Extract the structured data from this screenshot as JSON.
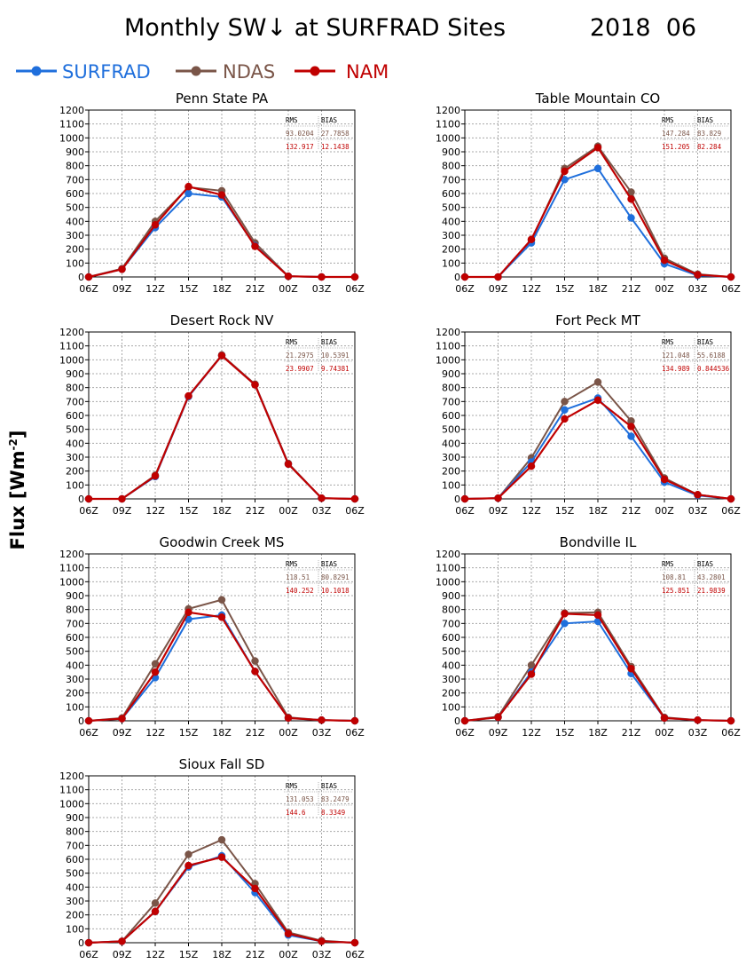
{
  "title": "Monthly SW↓ at SURFRAD Sites",
  "date": "2018  06",
  "ylabel_base": "Flux [Wm",
  "ylabel_sup": "-2",
  "ylabel_end": "]",
  "legend": [
    {
      "name": "SURFRAD",
      "color": "#1f6fdc"
    },
    {
      "name": "NDAS",
      "color": "#7a5548"
    },
    {
      "name": "NAM",
      "color": "#c00000"
    }
  ],
  "colors": {
    "SURFRAD": "#1f6fdc",
    "NDAS": "#7a5548",
    "NAM": "#c00000",
    "grid": "#a8a8a8"
  },
  "stats_headers": [
    "RMS",
    "BIAS"
  ],
  "chart_data": [
    {
      "type": "line",
      "title": "Penn State PA",
      "categories": [
        "06Z",
        "09Z",
        "12Z",
        "15Z",
        "18Z",
        "21Z",
        "00Z",
        "03Z",
        "06Z"
      ],
      "ylim": [
        0,
        1200
      ],
      "yticks": [
        "0",
        "100",
        "200",
        "300",
        "400",
        "500",
        "600",
        "700",
        "800",
        "900",
        "1000",
        "1100",
        "1200"
      ],
      "grid": true,
      "series": [
        {
          "name": "SURFRAD",
          "values": [
            0,
            55,
            355,
            600,
            575,
            225,
            5,
            0,
            0
          ]
        },
        {
          "name": "NDAS",
          "values": [
            0,
            60,
            400,
            645,
            620,
            245,
            5,
            0,
            0
          ]
        },
        {
          "name": "NAM",
          "values": [
            0,
            55,
            375,
            650,
            590,
            220,
            5,
            0,
            0
          ]
        }
      ],
      "stats": {
        "ndas": [
          "93.0204",
          "27.7858"
        ],
        "nam": [
          "132.917",
          "12.1438"
        ]
      }
    },
    {
      "type": "line",
      "title": "Table Mountain CO",
      "categories": [
        "06Z",
        "09Z",
        "12Z",
        "15Z",
        "18Z",
        "21Z",
        "00Z",
        "03Z",
        "06Z"
      ],
      "ylim": [
        0,
        1200
      ],
      "yticks": [
        "0",
        "100",
        "200",
        "300",
        "400",
        "500",
        "600",
        "700",
        "800",
        "900",
        "1000",
        "1100",
        "1200"
      ],
      "grid": true,
      "series": [
        {
          "name": "SURFRAD",
          "values": [
            0,
            0,
            245,
            700,
            780,
            425,
            95,
            10,
            0
          ]
        },
        {
          "name": "NDAS",
          "values": [
            0,
            0,
            265,
            780,
            940,
            610,
            135,
            20,
            0
          ]
        },
        {
          "name": "NAM",
          "values": [
            0,
            0,
            270,
            760,
            930,
            560,
            120,
            15,
            0
          ]
        }
      ],
      "stats": {
        "ndas": [
          "147.284",
          "83.829"
        ],
        "nam": [
          "151.205",
          "82.284"
        ]
      }
    },
    {
      "type": "line",
      "title": "Desert Rock NV",
      "categories": [
        "06Z",
        "09Z",
        "12Z",
        "15Z",
        "18Z",
        "21Z",
        "00Z",
        "03Z",
        "06Z"
      ],
      "ylim": [
        0,
        1200
      ],
      "yticks": [
        "0",
        "100",
        "200",
        "300",
        "400",
        "500",
        "600",
        "700",
        "800",
        "900",
        "1000",
        "1100",
        "1200"
      ],
      "grid": true,
      "series": [
        {
          "name": "SURFRAD",
          "values": [
            0,
            0,
            160,
            735,
            1030,
            820,
            250,
            5,
            0
          ]
        },
        {
          "name": "NDAS",
          "values": [
            0,
            0,
            170,
            740,
            1035,
            825,
            255,
            5,
            0
          ]
        },
        {
          "name": "NAM",
          "values": [
            0,
            0,
            165,
            740,
            1030,
            820,
            250,
            5,
            0
          ]
        }
      ],
      "stats": {
        "ndas": [
          "21.2975",
          "10.5391"
        ],
        "nam": [
          "23.9907",
          "9.74381"
        ]
      }
    },
    {
      "type": "line",
      "title": "Fort Peck MT",
      "categories": [
        "06Z",
        "09Z",
        "12Z",
        "15Z",
        "18Z",
        "21Z",
        "00Z",
        "03Z",
        "06Z"
      ],
      "ylim": [
        0,
        1200
      ],
      "yticks": [
        "0",
        "100",
        "200",
        "300",
        "400",
        "500",
        "600",
        "700",
        "800",
        "900",
        "1000",
        "1100",
        "1200"
      ],
      "grid": true,
      "series": [
        {
          "name": "SURFRAD",
          "values": [
            0,
            5,
            265,
            640,
            725,
            450,
            120,
            25,
            0
          ]
        },
        {
          "name": "NDAS",
          "values": [
            0,
            5,
            295,
            700,
            840,
            560,
            150,
            30,
            0
          ]
        },
        {
          "name": "NAM",
          "values": [
            0,
            5,
            235,
            575,
            710,
            520,
            140,
            30,
            0
          ]
        }
      ],
      "stats": {
        "ndas": [
          "121.048",
          "55.6188"
        ],
        "nam": [
          "134.989",
          "0.844536"
        ]
      }
    },
    {
      "type": "line",
      "title": "Goodwin Creek MS",
      "categories": [
        "06Z",
        "09Z",
        "12Z",
        "15Z",
        "18Z",
        "21Z",
        "00Z",
        "03Z",
        "06Z"
      ],
      "ylim": [
        0,
        1200
      ],
      "yticks": [
        "0",
        "100",
        "200",
        "300",
        "400",
        "500",
        "600",
        "700",
        "800",
        "900",
        "1000",
        "1100",
        "1200"
      ],
      "grid": true,
      "series": [
        {
          "name": "SURFRAD",
          "values": [
            0,
            15,
            310,
            730,
            760,
            355,
            20,
            5,
            0
          ]
        },
        {
          "name": "NDAS",
          "values": [
            0,
            20,
            410,
            805,
            870,
            430,
            25,
            5,
            0
          ]
        },
        {
          "name": "NAM",
          "values": [
            0,
            15,
            350,
            780,
            745,
            355,
            20,
            5,
            0
          ]
        }
      ],
      "stats": {
        "ndas": [
          "118.51",
          "80.8291"
        ],
        "nam": [
          "140.252",
          "10.1018"
        ]
      }
    },
    {
      "type": "line",
      "title": "Bondville IL",
      "categories": [
        "06Z",
        "09Z",
        "12Z",
        "15Z",
        "18Z",
        "21Z",
        "00Z",
        "03Z",
        "06Z"
      ],
      "ylim": [
        0,
        1200
      ],
      "yticks": [
        "0",
        "100",
        "200",
        "300",
        "400",
        "500",
        "600",
        "700",
        "800",
        "900",
        "1000",
        "1100",
        "1200"
      ],
      "grid": true,
      "series": [
        {
          "name": "SURFRAD",
          "values": [
            0,
            25,
            350,
            700,
            715,
            340,
            20,
            5,
            0
          ]
        },
        {
          "name": "NDAS",
          "values": [
            0,
            30,
            400,
            775,
            780,
            390,
            25,
            5,
            0
          ]
        },
        {
          "name": "NAM",
          "values": [
            0,
            25,
            335,
            770,
            760,
            375,
            20,
            5,
            0
          ]
        }
      ],
      "stats": {
        "ndas": [
          "108.81",
          "43.2801"
        ],
        "nam": [
          "125.851",
          "21.9839"
        ]
      }
    },
    {
      "type": "line",
      "title": "Sioux Fall SD",
      "categories": [
        "06Z",
        "09Z",
        "12Z",
        "15Z",
        "18Z",
        "21Z",
        "00Z",
        "03Z",
        "06Z"
      ],
      "ylim": [
        0,
        1200
      ],
      "yticks": [
        "0",
        "100",
        "200",
        "300",
        "400",
        "500",
        "600",
        "700",
        "800",
        "900",
        "1000",
        "1100",
        "1200"
      ],
      "grid": true,
      "series": [
        {
          "name": "SURFRAD",
          "values": [
            0,
            10,
            225,
            545,
            625,
            360,
            55,
            10,
            0
          ]
        },
        {
          "name": "NDAS",
          "values": [
            0,
            10,
            285,
            635,
            740,
            425,
            75,
            15,
            0
          ]
        },
        {
          "name": "NAM",
          "values": [
            0,
            10,
            225,
            555,
            615,
            390,
            65,
            10,
            0
          ]
        }
      ],
      "stats": {
        "ndas": [
          "131.053",
          "83.2479"
        ],
        "nam": [
          "144.6",
          "8.3349"
        ]
      }
    }
  ]
}
